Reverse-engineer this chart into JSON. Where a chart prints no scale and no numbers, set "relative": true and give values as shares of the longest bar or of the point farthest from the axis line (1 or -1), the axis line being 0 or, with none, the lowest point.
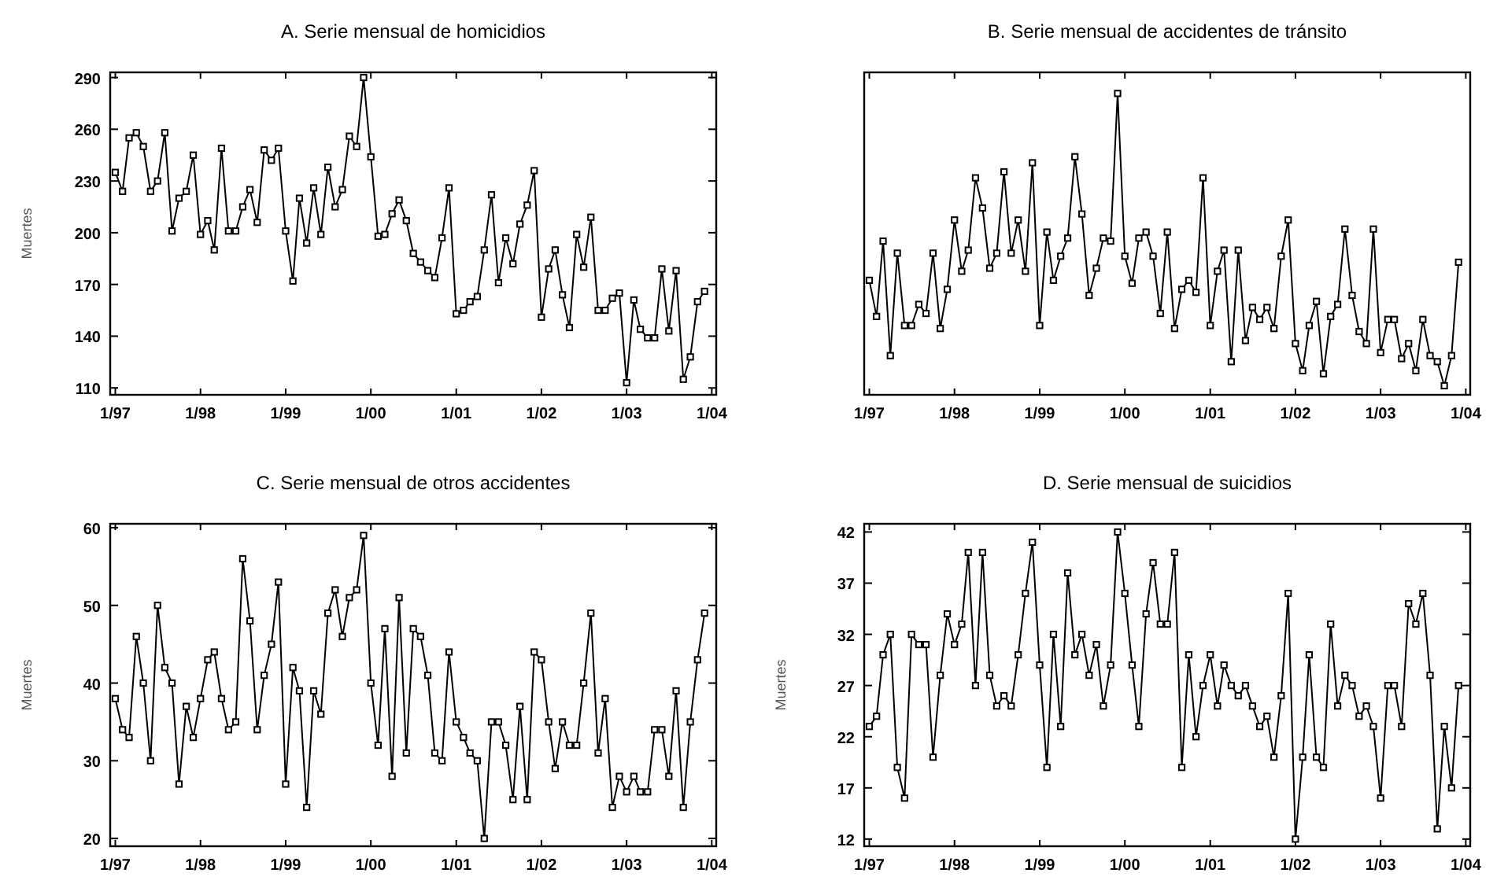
{
  "chart_data": [
    {
      "type": "line",
      "title": "A. Serie mensual de homicidios",
      "ylabel": "Muertes",
      "marker": "square",
      "grid": false,
      "xlim": [
        "1996-12-10",
        "2004-01-20"
      ],
      "xticks": [
        {
          "value": "1997-01",
          "label": "1/97"
        },
        {
          "value": "1998-01",
          "label": "1/98"
        },
        {
          "value": "1999-01",
          "label": "1/99"
        },
        {
          "value": "2000-01",
          "label": "1/00"
        },
        {
          "value": "2001-01",
          "label": "1/01"
        },
        {
          "value": "2002-01",
          "label": "1/02"
        },
        {
          "value": "2003-01",
          "label": "1/03"
        },
        {
          "value": "2004-01",
          "label": "1/04"
        }
      ],
      "ylim": [
        106,
        293
      ],
      "yticks": [
        110,
        140,
        170,
        200,
        230,
        260,
        290
      ],
      "x": [
        "1997-01",
        "1997-02",
        "1997-03",
        "1997-04",
        "1997-05",
        "1997-06",
        "1997-07",
        "1997-08",
        "1997-09",
        "1997-10",
        "1997-11",
        "1997-12",
        "1998-01",
        "1998-02",
        "1998-03",
        "1998-04",
        "1998-05",
        "1998-06",
        "1998-07",
        "1998-08",
        "1998-09",
        "1998-10",
        "1998-11",
        "1998-12",
        "1999-01",
        "1999-02",
        "1999-03",
        "1999-04",
        "1999-05",
        "1999-06",
        "1999-07",
        "1999-08",
        "1999-09",
        "1999-10",
        "1999-11",
        "1999-12",
        "2000-01",
        "2000-02",
        "2000-03",
        "2000-04",
        "2000-05",
        "2000-06",
        "2000-07",
        "2000-08",
        "2000-09",
        "2000-10",
        "2000-11",
        "2000-12",
        "2001-01",
        "2001-02",
        "2001-03",
        "2001-04",
        "2001-05",
        "2001-06",
        "2001-07",
        "2001-08",
        "2001-09",
        "2001-10",
        "2001-11",
        "2001-12",
        "2002-01",
        "2002-02",
        "2002-03",
        "2002-04",
        "2002-05",
        "2002-06",
        "2002-07",
        "2002-08",
        "2002-09",
        "2002-10",
        "2002-11",
        "2002-12",
        "2003-01",
        "2003-02",
        "2003-03",
        "2003-04",
        "2003-05",
        "2003-06",
        "2003-07",
        "2003-08",
        "2003-09",
        "2003-10",
        "2003-11",
        "2003-12"
      ],
      "series": [
        {
          "color": "#000000",
          "values": [
            235,
            224,
            255,
            258,
            250,
            224,
            230,
            258,
            201,
            220,
            224,
            245,
            199,
            207,
            190,
            249,
            201,
            201,
            215,
            225,
            206,
            248,
            242,
            249,
            201,
            172,
            220,
            194,
            226,
            199,
            238,
            215,
            225,
            256,
            250,
            290,
            244,
            198,
            199,
            211,
            219,
            207,
            188,
            183,
            178,
            174,
            197,
            226,
            153,
            155,
            160,
            163,
            190,
            222,
            171,
            197,
            182,
            205,
            216,
            236,
            151,
            179,
            190,
            164,
            145,
            199,
            180,
            209,
            155,
            155,
            162,
            165,
            113,
            161,
            144,
            139,
            139,
            179,
            143,
            178,
            115,
            128,
            160,
            166
          ]
        }
      ]
    },
    {
      "type": "line",
      "title": "B. Serie mensual de accidentes de tránsito",
      "relative": true,
      "marker": "square",
      "grid": false,
      "tick_labels": "x",
      "xlim": [
        "1996-12-10",
        "2004-01-20"
      ],
      "xticks": [
        {
          "value": "1997-01",
          "label": "1/97"
        },
        {
          "value": "1998-01",
          "label": "1/98"
        },
        {
          "value": "1999-01",
          "label": "1/99"
        },
        {
          "value": "2000-01",
          "label": "1/00"
        },
        {
          "value": "2001-01",
          "label": "1/01"
        },
        {
          "value": "2002-01",
          "label": "1/02"
        },
        {
          "value": "2003-01",
          "label": "1/03"
        },
        {
          "value": "2004-01",
          "label": "1/04"
        }
      ],
      "x": [
        "1997-01",
        "1997-02",
        "1997-03",
        "1997-04",
        "1997-05",
        "1997-06",
        "1997-07",
        "1997-08",
        "1997-09",
        "1997-10",
        "1997-11",
        "1997-12",
        "1998-01",
        "1998-02",
        "1998-03",
        "1998-04",
        "1998-05",
        "1998-06",
        "1998-07",
        "1998-08",
        "1998-09",
        "1998-10",
        "1998-11",
        "1998-12",
        "1999-01",
        "1999-02",
        "1999-03",
        "1999-04",
        "1999-05",
        "1999-06",
        "1999-07",
        "1999-08",
        "1999-09",
        "1999-10",
        "1999-11",
        "1999-12",
        "2000-01",
        "2000-02",
        "2000-03",
        "2000-04",
        "2000-05",
        "2000-06",
        "2000-07",
        "2000-08",
        "2000-09",
        "2000-10",
        "2000-11",
        "2000-12",
        "2001-01",
        "2001-02",
        "2001-03",
        "2001-04",
        "2001-05",
        "2001-06",
        "2001-07",
        "2001-08",
        "2001-09",
        "2001-10",
        "2001-11",
        "2001-12",
        "2002-01",
        "2002-02",
        "2002-03",
        "2002-04",
        "2002-05",
        "2002-06",
        "2002-07",
        "2002-08",
        "2002-09",
        "2002-10",
        "2002-11",
        "2002-12",
        "2003-01",
        "2003-02",
        "2003-03",
        "2003-04",
        "2003-05",
        "2003-06",
        "2003-07",
        "2003-08",
        "2003-09",
        "2003-10",
        "2003-11",
        "2003-12"
      ],
      "series": [
        {
          "color": "#000000",
          "values": [
            0.38,
            0.26,
            0.51,
            0.13,
            0.47,
            0.23,
            0.23,
            0.3,
            0.27,
            0.47,
            0.22,
            0.35,
            0.58,
            0.41,
            0.48,
            0.72,
            0.62,
            0.42,
            0.47,
            0.74,
            0.47,
            0.58,
            0.41,
            0.77,
            0.23,
            0.54,
            0.38,
            0.46,
            0.52,
            0.79,
            0.6,
            0.33,
            0.42,
            0.52,
            0.51,
            1,
            0.46,
            0.37,
            0.52,
            0.54,
            0.46,
            0.27,
            0.54,
            0.22,
            0.35,
            0.38,
            0.34,
            0.72,
            0.23,
            0.41,
            0.48,
            0.11,
            0.48,
            0.18,
            0.29,
            0.25,
            0.29,
            0.22,
            0.46,
            0.58,
            0.17,
            0.08,
            0.23,
            0.31,
            0.07,
            0.26,
            0.3,
            0.55,
            0.33,
            0.21,
            0.17,
            0.55,
            0.14,
            0.25,
            0.25,
            0.12,
            0.17,
            0.08,
            0.25,
            0.13,
            0.11,
            0.03,
            0.13,
            0.44
          ]
        }
      ]
    },
    {
      "type": "line",
      "title": "C. Serie mensual de otros accidentes",
      "ylabel": "Muertes",
      "marker": "square",
      "grid": false,
      "xlim": [
        "1996-12-10",
        "2004-01-20"
      ],
      "xticks": [
        {
          "value": "1997-01",
          "label": "1/97"
        },
        {
          "value": "1998-01",
          "label": "1/98"
        },
        {
          "value": "1999-01",
          "label": "1/99"
        },
        {
          "value": "2000-01",
          "label": "1/00"
        },
        {
          "value": "2001-01",
          "label": "1/01"
        },
        {
          "value": "2002-01",
          "label": "1/02"
        },
        {
          "value": "2003-01",
          "label": "1/03"
        },
        {
          "value": "2004-01",
          "label": "1/04"
        }
      ],
      "ylim": [
        19,
        60.5
      ],
      "yticks": [
        20,
        30,
        40,
        50,
        60
      ],
      "x": [
        "1997-01",
        "1997-02",
        "1997-03",
        "1997-04",
        "1997-05",
        "1997-06",
        "1997-07",
        "1997-08",
        "1997-09",
        "1997-10",
        "1997-11",
        "1997-12",
        "1998-01",
        "1998-02",
        "1998-03",
        "1998-04",
        "1998-05",
        "1998-06",
        "1998-07",
        "1998-08",
        "1998-09",
        "1998-10",
        "1998-11",
        "1998-12",
        "1999-01",
        "1999-02",
        "1999-03",
        "1999-04",
        "1999-05",
        "1999-06",
        "1999-07",
        "1999-08",
        "1999-09",
        "1999-10",
        "1999-11",
        "1999-12",
        "2000-01",
        "2000-02",
        "2000-03",
        "2000-04",
        "2000-05",
        "2000-06",
        "2000-07",
        "2000-08",
        "2000-09",
        "2000-10",
        "2000-11",
        "2000-12",
        "2001-01",
        "2001-02",
        "2001-03",
        "2001-04",
        "2001-05",
        "2001-06",
        "2001-07",
        "2001-08",
        "2001-09",
        "2001-10",
        "2001-11",
        "2001-12",
        "2002-01",
        "2002-02",
        "2002-03",
        "2002-04",
        "2002-05",
        "2002-06",
        "2002-07",
        "2002-08",
        "2002-09",
        "2002-10",
        "2002-11",
        "2002-12",
        "2003-01",
        "2003-02",
        "2003-03",
        "2003-04",
        "2003-05",
        "2003-06",
        "2003-07",
        "2003-08",
        "2003-09",
        "2003-10",
        "2003-11",
        "2003-12"
      ],
      "series": [
        {
          "color": "#000000",
          "values": [
            38,
            34,
            33,
            46,
            40,
            30,
            50,
            42,
            40,
            27,
            37,
            33,
            38,
            43,
            44,
            38,
            34,
            35,
            56,
            48,
            34,
            41,
            45,
            53,
            27,
            42,
            39,
            24,
            39,
            36,
            49,
            52,
            46,
            51,
            52,
            59,
            40,
            32,
            47,
            28,
            51,
            31,
            47,
            46,
            41,
            31,
            30,
            44,
            35,
            33,
            31,
            30,
            20,
            35,
            35,
            32,
            25,
            37,
            25,
            44,
            43,
            35,
            29,
            35,
            32,
            32,
            40,
            49,
            31,
            38,
            24,
            28,
            26,
            28,
            26,
            26,
            34,
            34,
            28,
            39,
            24,
            35,
            43,
            49
          ]
        }
      ]
    },
    {
      "type": "line",
      "title": "D.  Serie mensual de suicidios",
      "ylabel": "Muertes",
      "marker": "square",
      "grid": false,
      "xlim": [
        "1996-12-10",
        "2004-01-20"
      ],
      "xticks": [
        {
          "value": "1997-01",
          "label": "1/97"
        },
        {
          "value": "1998-01",
          "label": "1/98"
        },
        {
          "value": "1999-01",
          "label": "1/99"
        },
        {
          "value": "2000-01",
          "label": "1/00"
        },
        {
          "value": "2001-01",
          "label": "1/01"
        },
        {
          "value": "2002-01",
          "label": "1/02"
        },
        {
          "value": "2003-01",
          "label": "1/03"
        },
        {
          "value": "2004-01",
          "label": "1/04"
        }
      ],
      "ylim": [
        11.3,
        42.8
      ],
      "yticks": [
        12,
        17,
        22,
        27,
        32,
        37,
        42
      ],
      "x": [
        "1997-01",
        "1997-02",
        "1997-03",
        "1997-04",
        "1997-05",
        "1997-06",
        "1997-07",
        "1997-08",
        "1997-09",
        "1997-10",
        "1997-11",
        "1997-12",
        "1998-01",
        "1998-02",
        "1998-03",
        "1998-04",
        "1998-05",
        "1998-06",
        "1998-07",
        "1998-08",
        "1998-09",
        "1998-10",
        "1998-11",
        "1998-12",
        "1999-01",
        "1999-02",
        "1999-03",
        "1999-04",
        "1999-05",
        "1999-06",
        "1999-07",
        "1999-08",
        "1999-09",
        "1999-10",
        "1999-11",
        "1999-12",
        "2000-01",
        "2000-02",
        "2000-03",
        "2000-04",
        "2000-05",
        "2000-06",
        "2000-07",
        "2000-08",
        "2000-09",
        "2000-10",
        "2000-11",
        "2000-12",
        "2001-01",
        "2001-02",
        "2001-03",
        "2001-04",
        "2001-05",
        "2001-06",
        "2001-07",
        "2001-08",
        "2001-09",
        "2001-10",
        "2001-11",
        "2001-12",
        "2002-01",
        "2002-02",
        "2002-03",
        "2002-04",
        "2002-05",
        "2002-06",
        "2002-07",
        "2002-08",
        "2002-09",
        "2002-10",
        "2002-11",
        "2002-12",
        "2003-01",
        "2003-02",
        "2003-03",
        "2003-04",
        "2003-05",
        "2003-06",
        "2003-07",
        "2003-08",
        "2003-09",
        "2003-10",
        "2003-11",
        "2003-12"
      ],
      "series": [
        {
          "color": "#000000",
          "values": [
            23,
            24,
            30,
            32,
            19,
            16,
            32,
            31,
            31,
            20,
            28,
            34,
            31,
            33,
            40,
            27,
            40,
            28,
            25,
            26,
            25,
            30,
            36,
            41,
            29,
            19,
            32,
            23,
            38,
            30,
            32,
            28,
            31,
            25,
            29,
            42,
            36,
            29,
            23,
            34,
            39,
            33,
            33,
            40,
            19,
            30,
            22,
            27,
            30,
            25,
            29,
            27,
            26,
            27,
            25,
            23,
            24,
            20,
            26,
            36,
            12,
            20,
            30,
            20,
            19,
            33,
            25,
            28,
            27,
            24,
            25,
            23,
            16,
            27,
            27,
            23,
            35,
            33,
            36,
            28,
            13,
            23,
            17,
            27
          ]
        }
      ]
    }
  ]
}
